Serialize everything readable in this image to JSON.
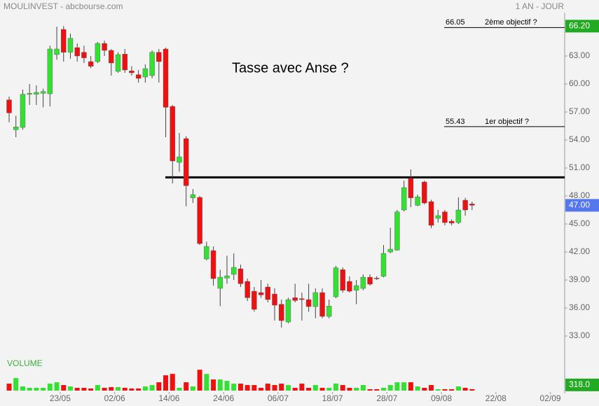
{
  "chart_data": {
    "type": "candlestick",
    "title": "MOULINVEST - abcbourse.com",
    "subtitle": "1 AN - JOUR",
    "annotation": "Tasse avec Anse ?",
    "up_color": "#33e033",
    "down_color": "#ee1111",
    "xlim": [
      -1.34,
      81.5
    ],
    "xticks": [
      {
        "value": 7.5,
        "label": "23/05"
      },
      {
        "value": 15.5,
        "label": "02/06"
      },
      {
        "value": 23.5,
        "label": "14/06"
      },
      {
        "value": 31.5,
        "label": "24/06"
      },
      {
        "value": 39.5,
        "label": "06/07"
      },
      {
        "value": 47.5,
        "label": "18/07"
      },
      {
        "value": 55.5,
        "label": "28/07"
      },
      {
        "value": 63.5,
        "label": "09/08"
      },
      {
        "value": 71.5,
        "label": "22/08"
      },
      {
        "value": 79.5,
        "label": "02/09"
      }
    ],
    "ylim": [
      31.5,
      67.65
    ],
    "yticks": [
      {
        "value": 33,
        "label": "33.00"
      },
      {
        "value": 36,
        "label": "36.00"
      },
      {
        "value": 39,
        "label": "39.00"
      },
      {
        "value": 42,
        "label": "42.00"
      },
      {
        "value": 45,
        "label": "45.00"
      },
      {
        "value": 48,
        "label": "48.00"
      },
      {
        "value": 51,
        "label": "51.00"
      },
      {
        "value": 54,
        "label": "54.00"
      },
      {
        "value": 57,
        "label": "57.00"
      },
      {
        "value": 60,
        "label": "60.00"
      },
      {
        "value": 63,
        "label": "63.00"
      }
    ],
    "open": [
      58.3,
      55.1,
      55.35,
      58.9,
      58.9,
      59.0,
      58.95,
      63.15,
      65.85,
      63.4,
      63.9,
      63.4,
      62.4,
      62.4,
      64.35,
      63.6,
      61.35,
      63.2,
      61.4,
      61.0,
      60.75,
      60.9,
      63.4,
      63.75,
      57.6,
      51.6,
      54.15,
      47.8,
      47.85,
      41.25,
      42.15,
      38.1,
      39.2,
      39.6,
      40.2,
      38.85,
      37.8,
      37.65,
      38.25,
      37.5,
      36.4,
      34.5,
      37.1,
      37.0,
      36.9,
      36.15,
      37.65,
      35.1,
      37.2,
      40.1,
      38.85,
      37.9,
      38.1,
      39.3,
      39.2,
      39.4,
      42.0,
      42.2,
      46.5,
      49.9,
      47.0,
      49.5,
      47.4,
      45.6,
      46.3,
      45.3,
      45.15,
      47.55,
      47.15
    ],
    "high": [
      58.65,
      56.6,
      59.4,
      60.0,
      59.85,
      59.5,
      64.1,
      66.15,
      66.2,
      65.4,
      64.35,
      64.1,
      63.0,
      64.5,
      64.65,
      63.75,
      63.4,
      63.75,
      61.9,
      61.5,
      62.1,
      63.6,
      63.75,
      63.9,
      57.75,
      54.75,
      54.4,
      48.75,
      48.0,
      43.1,
      42.6,
      40.1,
      41.6,
      41.85,
      40.65,
      39.15,
      38.25,
      39.0,
      38.6,
      38.1,
      36.9,
      37.1,
      38.6,
      37.65,
      38.6,
      38.1,
      38.1,
      36.9,
      40.5,
      40.35,
      39.4,
      39.0,
      39.6,
      39.6,
      39.4,
      42.75,
      44.6,
      46.5,
      49.65,
      50.85,
      48.15,
      49.65,
      47.6,
      46.5,
      46.5,
      45.5,
      47.85,
      47.8,
      47.4
    ],
    "low": [
      55.9,
      54.3,
      55.1,
      57.75,
      57.75,
      57.5,
      57.6,
      62.6,
      62.4,
      62.7,
      62.4,
      62.25,
      61.7,
      62.25,
      63.0,
      60.9,
      61.2,
      61.2,
      60.9,
      60.15,
      60.15,
      60.6,
      60.15,
      54.3,
      49.35,
      50.6,
      46.9,
      47.25,
      42.75,
      41.1,
      38.4,
      36.2,
      38.6,
      39.0,
      38.25,
      36.75,
      35.6,
      37.1,
      36.6,
      34.65,
      33.9,
      34.35,
      36.6,
      34.65,
      35.6,
      34.9,
      34.9,
      34.9,
      37.05,
      37.65,
      37.65,
      36.4,
      37.9,
      38.4,
      39.0,
      39.3,
      41.85,
      42.15,
      46.35,
      46.8,
      46.9,
      47.1,
      44.55,
      45.15,
      44.85,
      44.85,
      45.0,
      45.9,
      46.5
    ],
    "close": [
      56.9,
      55.4,
      58.9,
      59.0,
      59.1,
      59.2,
      63.75,
      63.75,
      63.4,
      64.9,
      63.0,
      62.8,
      61.9,
      64.35,
      63.6,
      62.25,
      63.15,
      61.5,
      61.2,
      60.6,
      61.65,
      63.4,
      62.4,
      57.5,
      51.75,
      52.2,
      49.1,
      48.15,
      42.9,
      42.6,
      39.15,
      39.3,
      39.45,
      40.35,
      38.6,
      37.1,
      35.85,
      37.4,
      36.9,
      36.3,
      34.65,
      36.9,
      36.8,
      36.9,
      36.15,
      37.65,
      35.1,
      36.2,
      40.3,
      37.9,
      37.8,
      38.4,
      39.3,
      38.55,
      39.15,
      41.85,
      42.3,
      46.3,
      48.9,
      47.8,
      47.9,
      47.25,
      44.85,
      45.9,
      45.15,
      45.1,
      46.5,
      46.5,
      47.0
    ],
    "high_label": {
      "value": 66.2,
      "label": "66.20"
    },
    "last_price": {
      "value": 47,
      "label": "47.00"
    },
    "resistance": 50.0,
    "levels": [
      {
        "value": 66.05,
        "name": "2ème objectif   ?"
      },
      {
        "value": 55.43,
        "name": "1er objectif   ?"
      }
    ],
    "volume": {
      "label": "VOLUME",
      "ylim": [
        0,
        8000
      ],
      "values": [
        1500,
        2700,
        900,
        600,
        600,
        600,
        1500,
        1800,
        1200,
        900,
        600,
        600,
        450,
        1200,
        600,
        750,
        750,
        600,
        450,
        450,
        900,
        1200,
        1800,
        3300,
        3600,
        600,
        1800,
        900,
        4500,
        3600,
        2400,
        2400,
        2100,
        1500,
        1500,
        1200,
        1200,
        600,
        1500,
        1200,
        1500,
        1200,
        600,
        1500,
        600,
        1200,
        600,
        600,
        1500,
        1200,
        600,
        600,
        1200,
        300,
        300,
        600,
        1200,
        1800,
        1800,
        1800,
        900,
        600,
        1200,
        300,
        300,
        300,
        900,
        600,
        318
      ],
      "last": {
        "value": 318,
        "label": "318.0"
      }
    }
  }
}
